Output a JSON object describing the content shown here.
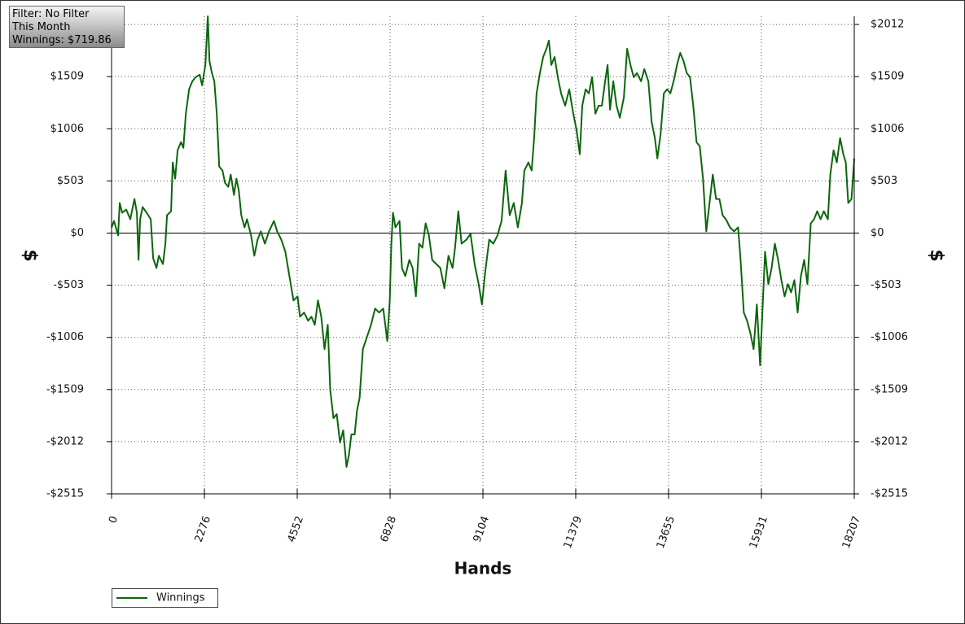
{
  "chart_data": {
    "type": "line",
    "annotations": [
      "Filter: No Filter",
      "This Month",
      "Winnings: $719.86"
    ],
    "x_label": "Hands",
    "y_label": "$",
    "y2_label": "$",
    "grid": true,
    "legend": "bottom-left",
    "xlim": [
      0,
      18207
    ],
    "ylim": [
      -2515,
      2091
    ],
    "xticks": [
      0,
      2276,
      4552,
      6828,
      9104,
      11379,
      13655,
      15931,
      18207
    ],
    "yticks": [
      {
        "value": 2012,
        "label": "$2012"
      },
      {
        "value": 1509,
        "label": "$1509"
      },
      {
        "value": 1006,
        "label": "$1006"
      },
      {
        "value": 503,
        "label": "$503"
      },
      {
        "value": 0,
        "label": "$0"
      },
      {
        "value": -503,
        "label": "-$503"
      },
      {
        "value": -1006,
        "label": "-$1006"
      },
      {
        "value": -1509,
        "label": "-$1509"
      },
      {
        "value": -2012,
        "label": "-$2012"
      },
      {
        "value": -2515,
        "label": "-$2515"
      }
    ],
    "x": [
      0,
      60,
      160,
      200,
      260,
      360,
      460,
      560,
      620,
      660,
      700,
      760,
      860,
      960,
      1020,
      1100,
      1160,
      1260,
      1320,
      1360,
      1460,
      1500,
      1560,
      1620,
      1700,
      1760,
      1820,
      1900,
      1980,
      2060,
      2160,
      2220,
      2300,
      2360,
      2400,
      2460,
      2520,
      2580,
      2640,
      2720,
      2780,
      2860,
      2920,
      3000,
      3060,
      3120,
      3180,
      3260,
      3320,
      3420,
      3500,
      3580,
      3660,
      3760,
      3860,
      3980,
      4060,
      4160,
      4260,
      4360,
      4460,
      4560,
      4620,
      4720,
      4820,
      4900,
      4980,
      5060,
      5140,
      5220,
      5300,
      5360,
      5440,
      5520,
      5600,
      5680,
      5760,
      5820,
      5880,
      5960,
      6020,
      6080,
      6160,
      6260,
      6360,
      6460,
      6560,
      6660,
      6760,
      6820,
      6860,
      6900,
      6960,
      7060,
      7120,
      7200,
      7300,
      7380,
      7460,
      7540,
      7620,
      7700,
      7780,
      7860,
      7960,
      8060,
      8160,
      8260,
      8360,
      8420,
      8500,
      8580,
      8700,
      8800,
      8900,
      9000,
      9080,
      9160,
      9260,
      9360,
      9460,
      9560,
      9660,
      9760,
      9860,
      9960,
      10060,
      10120,
      10220,
      10300,
      10360,
      10420,
      10500,
      10580,
      10660,
      10720,
      10780,
      10860,
      10940,
      11020,
      11120,
      11220,
      11320,
      11400,
      11480,
      11540,
      11620,
      11700,
      11780,
      11860,
      11940,
      12020,
      12100,
      12160,
      12220,
      12300,
      12380,
      12460,
      12560,
      12640,
      12720,
      12800,
      12880,
      12980,
      13060,
      13160,
      13240,
      13320,
      13380,
      13460,
      13540,
      13620,
      13700,
      13780,
      13860,
      13940,
      14020,
      14100,
      14180,
      14260,
      14340,
      14420,
      14500,
      14580,
      14660,
      14740,
      14820,
      14900,
      14980,
      15060,
      15160,
      15260,
      15360,
      15420,
      15500,
      15580,
      15660,
      15740,
      15820,
      15900,
      15960,
      16020,
      16100,
      16180,
      16260,
      16340,
      16420,
      16500,
      16580,
      16660,
      16740,
      16820,
      16900,
      16980,
      17060,
      17140,
      17220,
      17300,
      17380,
      17460,
      17560,
      17620,
      17700,
      17780,
      17860,
      17940,
      18000,
      18060,
      18140,
      18207
    ],
    "series": [
      {
        "name": "Winnings",
        "color": "#0b660b",
        "values": [
          55,
          117,
          -23,
          290,
          196,
          227,
          133,
          329,
          196,
          -258,
          133,
          251,
          196,
          133,
          -243,
          -337,
          -219,
          -298,
          -102,
          172,
          211,
          681,
          525,
          799,
          877,
          822,
          1151,
          1386,
          1464,
          1503,
          1527,
          1425,
          1621,
          2091,
          1660,
          1543,
          1464,
          1151,
          642,
          603,
          485,
          446,
          564,
          368,
          525,
          407,
          172,
          55,
          133,
          -23,
          -219,
          -63,
          16,
          -102,
          16,
          117,
          16,
          -63,
          -180,
          -415,
          -650,
          -611,
          -806,
          -767,
          -846,
          -806,
          -885,
          -650,
          -806,
          -1120,
          -885,
          -1511,
          -1785,
          -1746,
          -2020,
          -1903,
          -2255,
          -2138,
          -1942,
          -1942,
          -1707,
          -1589,
          -1120,
          -1002,
          -885,
          -728,
          -767,
          -728,
          -1041,
          -650,
          -102,
          196,
          55,
          117,
          -337,
          -415,
          -258,
          -337,
          -611,
          -102,
          -141,
          94,
          -23,
          -258,
          -298,
          -337,
          -532,
          -219,
          -337,
          -141,
          211,
          -102,
          -63,
          -8,
          -298,
          -493,
          -689,
          -376,
          -63,
          -102,
          -23,
          117,
          603,
          172,
          290,
          55,
          290,
          603,
          681,
          603,
          916,
          1347,
          1543,
          1699,
          1777,
          1856,
          1621,
          1699,
          1503,
          1347,
          1229,
          1386,
          1151,
          994,
          760,
          1229,
          1386,
          1347,
          1503,
          1151,
          1229,
          1229,
          1464,
          1621,
          1190,
          1464,
          1229,
          1112,
          1308,
          1777,
          1621,
          1503,
          1543,
          1464,
          1582,
          1464,
          1073,
          916,
          720,
          955,
          1347,
          1386,
          1347,
          1464,
          1621,
          1738,
          1660,
          1543,
          1503,
          1229,
          877,
          838,
          525,
          16,
          290,
          564,
          329,
          329,
          172,
          133,
          55,
          16,
          55,
          -258,
          -767,
          -846,
          -963,
          -1120,
          -689,
          -1276,
          -728,
          -180,
          -493,
          -337,
          -102,
          -258,
          -454,
          -611,
          -493,
          -572,
          -454,
          -767,
          -415,
          -258,
          -493,
          94,
          133,
          211,
          133,
          211,
          133,
          564,
          799,
          681,
          916,
          760,
          681,
          290,
          329,
          720
        ]
      }
    ]
  }
}
